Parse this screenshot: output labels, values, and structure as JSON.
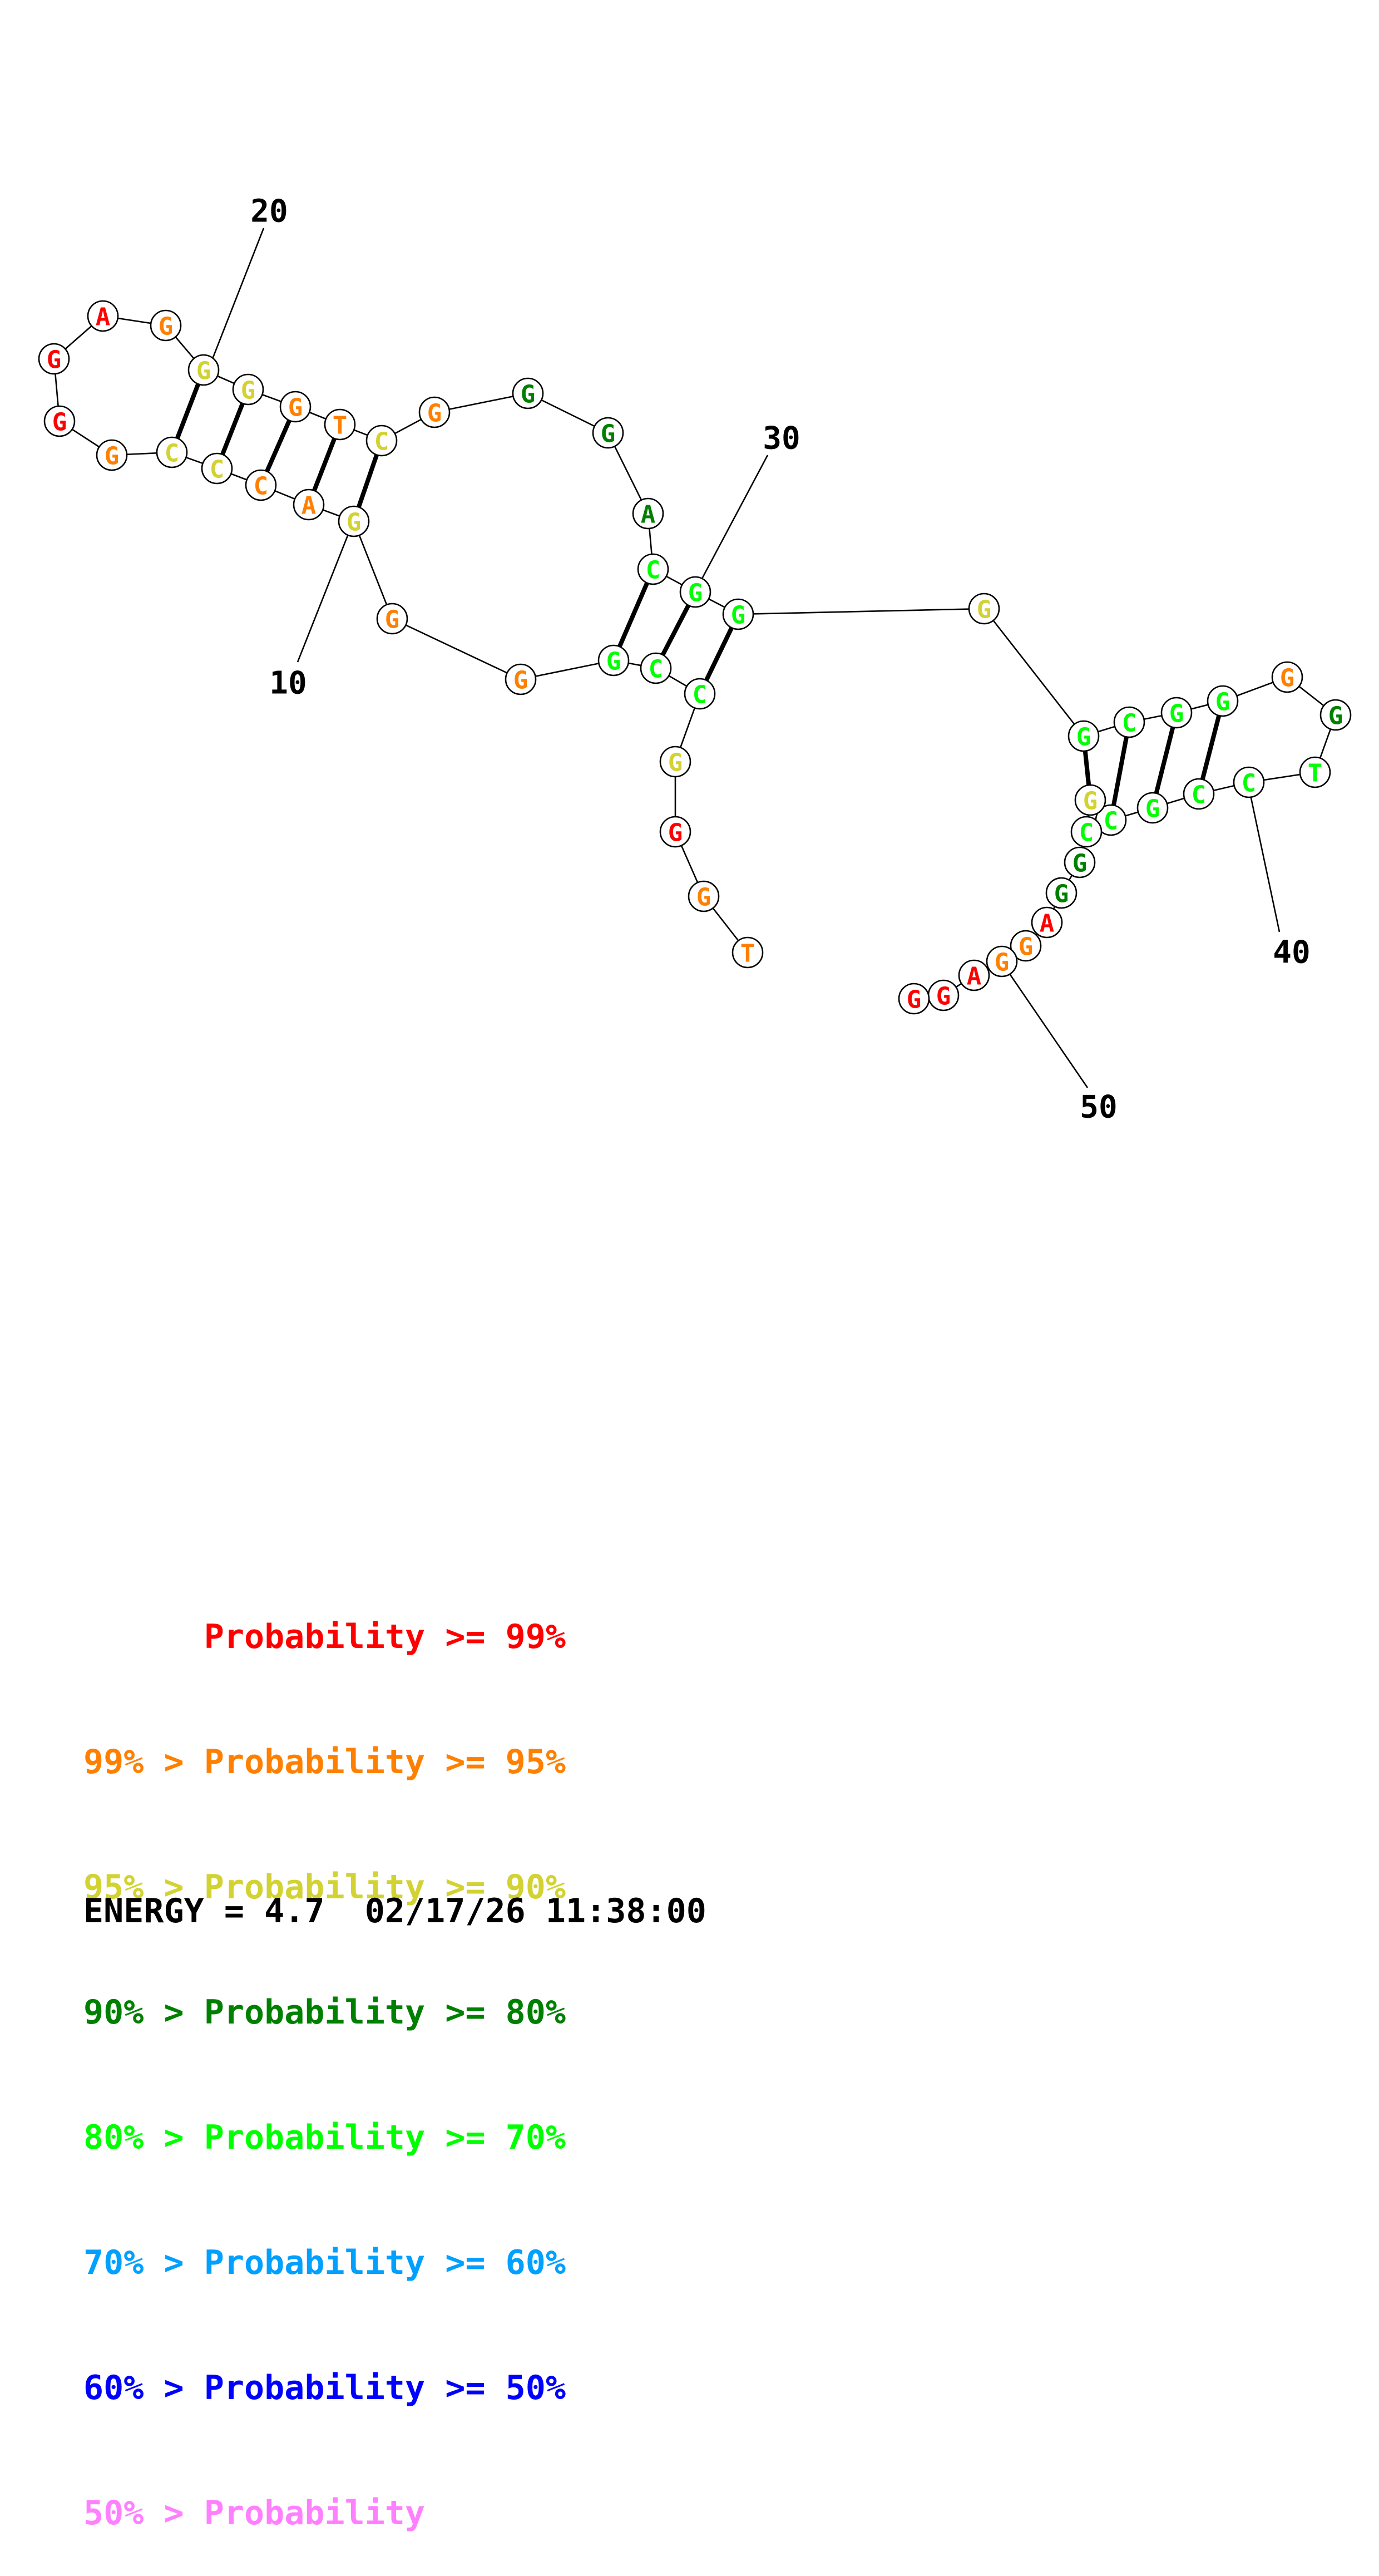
{
  "structure": {
    "nucleotides": [
      {
        "n": 1,
        "base": "T",
        "level": 1
      },
      {
        "n": 2,
        "base": "G",
        "level": 1
      },
      {
        "n": 3,
        "base": "G",
        "level": 0
      },
      {
        "n": 4,
        "base": "G",
        "level": 2
      },
      {
        "n": 5,
        "base": "C",
        "level": 4
      },
      {
        "n": 6,
        "base": "C",
        "level": 4
      },
      {
        "n": 7,
        "base": "G",
        "level": 4
      },
      {
        "n": 8,
        "base": "G",
        "level": 1
      },
      {
        "n": 9,
        "base": "G",
        "level": 1
      },
      {
        "n": 10,
        "base": "G",
        "level": 2
      },
      {
        "n": 11,
        "base": "A",
        "level": 1
      },
      {
        "n": 12,
        "base": "C",
        "level": 1
      },
      {
        "n": 13,
        "base": "C",
        "level": 2
      },
      {
        "n": 14,
        "base": "C",
        "level": 2
      },
      {
        "n": 15,
        "base": "G",
        "level": 1
      },
      {
        "n": 16,
        "base": "G",
        "level": 0
      },
      {
        "n": 17,
        "base": "G",
        "level": 0
      },
      {
        "n": 18,
        "base": "A",
        "level": 0
      },
      {
        "n": 19,
        "base": "G",
        "level": 1
      },
      {
        "n": 20,
        "base": "G",
        "level": 2
      },
      {
        "n": 21,
        "base": "G",
        "level": 2
      },
      {
        "n": 22,
        "base": "G",
        "level": 1
      },
      {
        "n": 23,
        "base": "T",
        "level": 1
      },
      {
        "n": 24,
        "base": "C",
        "level": 2
      },
      {
        "n": 25,
        "base": "G",
        "level": 1
      },
      {
        "n": 26,
        "base": "G",
        "level": 3
      },
      {
        "n": 27,
        "base": "G",
        "level": 3
      },
      {
        "n": 28,
        "base": "A",
        "level": 3
      },
      {
        "n": 29,
        "base": "C",
        "level": 4
      },
      {
        "n": 30,
        "base": "G",
        "level": 4
      },
      {
        "n": 31,
        "base": "G",
        "level": 4
      },
      {
        "n": 32,
        "base": "G",
        "level": 2
      },
      {
        "n": 33,
        "base": "G",
        "level": 4
      },
      {
        "n": 34,
        "base": "C",
        "level": 4
      },
      {
        "n": 35,
        "base": "G",
        "level": 4
      },
      {
        "n": 36,
        "base": "G",
        "level": 4
      },
      {
        "n": 37,
        "base": "G",
        "level": 1
      },
      {
        "n": 38,
        "base": "G",
        "level": 3
      },
      {
        "n": 39,
        "base": "T",
        "level": 4
      },
      {
        "n": 40,
        "base": "C",
        "level": 4
      },
      {
        "n": 41,
        "base": "C",
        "level": 4
      },
      {
        "n": 42,
        "base": "G",
        "level": 4
      },
      {
        "n": 43,
        "base": "C",
        "level": 4
      },
      {
        "n": 44,
        "base": "G",
        "level": 2
      },
      {
        "n": 45,
        "base": "C",
        "level": 4
      },
      {
        "n": 46,
        "base": "G",
        "level": 3
      },
      {
        "n": 47,
        "base": "G",
        "level": 3
      },
      {
        "n": 48,
        "base": "A",
        "level": 0
      },
      {
        "n": 49,
        "base": "G",
        "level": 1
      },
      {
        "n": 50,
        "base": "G",
        "level": 1
      },
      {
        "n": 51,
        "base": "A",
        "level": 0
      },
      {
        "n": 52,
        "base": "G",
        "level": 0
      },
      {
        "n": 53,
        "base": "G",
        "level": 0
      }
    ],
    "pairs": [
      [
        10,
        24
      ],
      [
        11,
        23
      ],
      [
        12,
        22
      ],
      [
        13,
        21
      ],
      [
        14,
        20
      ],
      [
        5,
        31
      ],
      [
        6,
        30
      ],
      [
        7,
        29
      ],
      [
        33,
        44
      ],
      [
        34,
        43
      ],
      [
        35,
        42
      ],
      [
        36,
        41
      ]
    ],
    "position_labels": [
      "10",
      "20",
      "30",
      "40",
      "50"
    ]
  },
  "legend": {
    "rows": [
      {
        "text": "      Probability >= 99%",
        "color": "#ff0000"
      },
      {
        "text": "99% > Probability >= 95%",
        "color": "#ff8000"
      },
      {
        "text": "95% > Probability >= 90%",
        "color": "#d2d232"
      },
      {
        "text": "90% > Probability >= 80%",
        "color": "#008000"
      },
      {
        "text": "80% > Probability >= 70%",
        "color": "#00ff00"
      },
      {
        "text": "70% > Probability >= 60%",
        "color": "#00a0ff"
      },
      {
        "text": "60% > Probability >= 50%",
        "color": "#0000ff"
      },
      {
        "text": "50% > Probability",
        "color": "#ff80ff"
      }
    ]
  },
  "footer": {
    "energy_text": "ENERGY = 4.7  02/17/26 11:38:00"
  }
}
